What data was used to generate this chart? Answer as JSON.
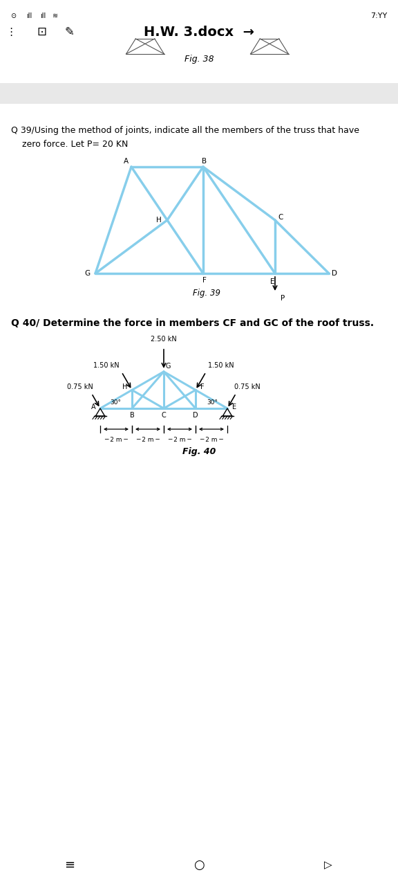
{
  "title_time": "7:YY",
  "title_doc": "H.W. 3.docx",
  "fig38_label": "Fig. 38",
  "q39_text1": "Q 39/Using the method of joints, indicate all the members of the truss that have",
  "q39_text2": "    zero force. Let P= 20 KN",
  "fig39_label": "Fig. 39",
  "q40_text": "Q 40/ Determine the force in members CF and GC of the roof truss.",
  "fig40_label": "Fig. 40",
  "truss_color": "#87CEEB",
  "bg_color": "#e8e8e8",
  "white": "#ffffff",
  "text_color": "#1a1a1a"
}
